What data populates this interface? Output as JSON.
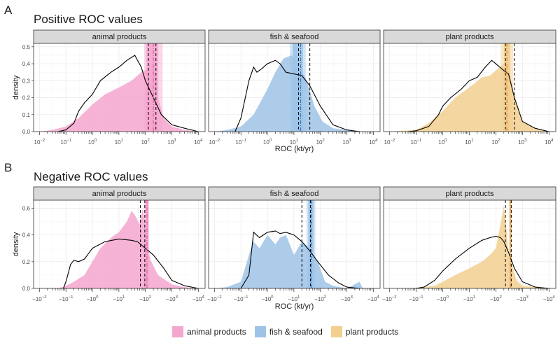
{
  "panels": [
    {
      "letter": "A",
      "title": "Positive ROC values"
    },
    {
      "letter": "B",
      "title": "Negative ROC values"
    }
  ],
  "colors": {
    "animal products": "#f4a6cf",
    "fish & seafood": "#9dc3e6",
    "plant products": "#f2cf8f",
    "animal_line": "#e8559b",
    "fish_line": "#2e6fc0",
    "plant_line": "#e07b2a"
  },
  "chart_data": [
    {
      "type": "area",
      "title": "Positive ROC values",
      "xlabel": "ROC (kt/yr)",
      "ylabel": "density",
      "x_scale": "log",
      "xlim": [
        0.006,
        18000
      ],
      "ylim": [
        0,
        0.52
      ],
      "y_ticks": [
        "0.0",
        "0.1",
        "0.2",
        "0.3",
        "0.4",
        "0.5"
      ],
      "x_tick_labels": [
        "10^-2",
        "10^-1",
        "10^0",
        "10^1",
        "10^2",
        "10^3",
        "10^4"
      ],
      "grid": true,
      "facets": [
        {
          "name": "animal products",
          "shaded_x": [
            0.01,
            0.03,
            0.1,
            0.3,
            1,
            3,
            10,
            30,
            70,
            100,
            150,
            200,
            300,
            500,
            1000,
            3000,
            10000
          ],
          "shaded_y": [
            0.0,
            0.01,
            0.03,
            0.08,
            0.16,
            0.22,
            0.26,
            0.3,
            0.35,
            0.36,
            0.4,
            0.38,
            0.2,
            0.08,
            0.03,
            0.01,
            0.0
          ],
          "line_x": [
            0.05,
            0.1,
            0.2,
            0.3,
            0.5,
            1,
            2,
            5,
            10,
            20,
            40,
            70,
            100,
            200,
            400,
            1000,
            3000,
            10000
          ],
          "line_y": [
            0.0,
            0.01,
            0.05,
            0.12,
            0.17,
            0.22,
            0.3,
            0.35,
            0.38,
            0.42,
            0.45,
            0.38,
            0.3,
            0.2,
            0.1,
            0.04,
            0.02,
            0.0
          ],
          "band_solid": [
            110,
            300
          ],
          "band_light": [
            90,
            450
          ],
          "vline_colored": 200,
          "vlines_dashed": [
            130,
            250
          ]
        },
        {
          "name": "fish & seafood",
          "shaded_x": [
            0.01,
            0.03,
            0.1,
            0.3,
            1,
            2,
            4,
            8,
            15,
            30,
            60,
            120,
            300,
            1000,
            5000
          ],
          "shaded_y": [
            0.0,
            0.01,
            0.03,
            0.1,
            0.25,
            0.35,
            0.43,
            0.45,
            0.4,
            0.3,
            0.15,
            0.06,
            0.02,
            0.01,
            0.0
          ],
          "line_x": [
            0.06,
            0.1,
            0.2,
            0.3,
            0.4,
            0.6,
            1,
            2,
            3,
            5,
            10,
            20,
            40,
            100,
            300,
            1000,
            3000
          ],
          "line_y": [
            0.0,
            0.08,
            0.3,
            0.38,
            0.35,
            0.37,
            0.4,
            0.42,
            0.4,
            0.35,
            0.34,
            0.33,
            0.27,
            0.15,
            0.04,
            0.01,
            0.0
          ],
          "band_solid": [
            9,
            22
          ],
          "band_light": [
            7,
            28
          ],
          "vline_colored": 18,
          "vlines_dashed": [
            15,
            40
          ]
        },
        {
          "name": "plant products",
          "shaded_x": [
            0.01,
            0.03,
            0.1,
            0.3,
            1,
            3,
            10,
            30,
            60,
            100,
            200,
            300,
            500,
            1000,
            3000,
            12000
          ],
          "shaded_y": [
            0.0,
            0.005,
            0.01,
            0.05,
            0.12,
            0.2,
            0.26,
            0.32,
            0.33,
            0.36,
            0.4,
            0.38,
            0.2,
            0.06,
            0.02,
            0.0
          ],
          "line_x": [
            0.05,
            0.1,
            0.3,
            0.7,
            1,
            2,
            5,
            10,
            20,
            40,
            70,
            100,
            200,
            300,
            500,
            1000,
            3000,
            10000
          ],
          "line_y": [
            0.0,
            0.005,
            0.03,
            0.1,
            0.15,
            0.2,
            0.25,
            0.3,
            0.32,
            0.38,
            0.42,
            0.4,
            0.36,
            0.34,
            0.2,
            0.06,
            0.02,
            0.0
          ],
          "band_solid": [
            200,
            350
          ],
          "band_light": [
            150,
            450
          ],
          "vline_colored": 260,
          "vlines_dashed": [
            230,
            500
          ]
        }
      ]
    },
    {
      "type": "area",
      "title": "Negative ROC values",
      "xlabel": "ROC (kt/yr)",
      "ylabel": "density",
      "x_scale": "log",
      "xlim": [
        0.006,
        18000
      ],
      "ylim": [
        0,
        0.66
      ],
      "y_ticks": [
        "0.0",
        "0.2",
        "0.4",
        "0.6"
      ],
      "x_tick_labels": [
        "-10^-2",
        "-10^-1",
        "-10^0",
        "-10^1",
        "-10^2",
        "-10^3",
        "-10^4"
      ],
      "grid": true,
      "facets": [
        {
          "name": "animal products",
          "shaded_x": [
            0.05,
            0.1,
            0.2,
            0.5,
            1,
            2,
            5,
            10,
            20,
            30,
            40,
            60,
            80,
            100,
            150,
            300,
            1000,
            3000,
            8000
          ],
          "shaded_y": [
            0.0,
            0.02,
            0.05,
            0.1,
            0.2,
            0.3,
            0.38,
            0.42,
            0.5,
            0.58,
            0.55,
            0.48,
            0.6,
            0.45,
            0.22,
            0.1,
            0.03,
            0.01,
            0.0
          ],
          "line_x": [
            0.08,
            0.1,
            0.15,
            0.2,
            0.3,
            0.5,
            1,
            3,
            10,
            30,
            50,
            100,
            200,
            500,
            1000,
            3000,
            10000
          ],
          "line_y": [
            0.0,
            0.05,
            0.18,
            0.21,
            0.2,
            0.22,
            0.3,
            0.35,
            0.37,
            0.36,
            0.35,
            0.3,
            0.25,
            0.15,
            0.06,
            0.02,
            0.0
          ],
          "band_solid": [
            100,
            130
          ],
          "band_light": [
            90,
            140
          ],
          "vline_colored": 115,
          "vlines_dashed": [
            65,
            95
          ]
        },
        {
          "name": "fish & seafood",
          "shaded_x": [
            0.01,
            0.03,
            0.1,
            0.2,
            0.3,
            0.5,
            1,
            2,
            3,
            5,
            8,
            10,
            20,
            40,
            80,
            150,
            300,
            1000,
            3000,
            4000
          ],
          "shaded_y": [
            0.0,
            0.01,
            0.05,
            0.25,
            0.35,
            0.3,
            0.4,
            0.33,
            0.38,
            0.4,
            0.3,
            0.25,
            0.35,
            0.3,
            0.2,
            0.05,
            0.02,
            0.0,
            0.05,
            0.0
          ],
          "line_x": [
            0.1,
            0.2,
            0.3,
            0.5,
            1,
            2,
            3,
            5,
            10,
            20,
            40,
            80,
            200,
            500,
            1000,
            3000
          ],
          "line_y": [
            0.0,
            0.1,
            0.42,
            0.38,
            0.42,
            0.43,
            0.41,
            0.42,
            0.4,
            0.35,
            0.28,
            0.2,
            0.1,
            0.04,
            0.01,
            0.0
          ],
          "band_solid": [
            35,
            55
          ],
          "band_light": [
            30,
            65
          ],
          "vline_colored": 45,
          "vlines_dashed": [
            20,
            42
          ]
        },
        {
          "name": "plant products",
          "shaded_x": [
            0.05,
            0.1,
            0.2,
            0.5,
            1,
            3,
            10,
            30,
            60,
            100,
            150,
            200,
            250,
            300,
            400,
            600,
            1000,
            3000,
            10000
          ],
          "shaded_y": [
            0.0,
            0.005,
            0.01,
            0.02,
            0.05,
            0.1,
            0.15,
            0.2,
            0.25,
            0.3,
            0.48,
            0.62,
            0.45,
            0.25,
            0.18,
            0.06,
            0.02,
            0.01,
            0.0
          ],
          "line_x": [
            0.1,
            0.2,
            0.5,
            1,
            3,
            10,
            30,
            60,
            100,
            150,
            200,
            300,
            500,
            1000,
            3000,
            10000
          ],
          "line_y": [
            0.0,
            0.01,
            0.06,
            0.13,
            0.22,
            0.3,
            0.36,
            0.38,
            0.39,
            0.38,
            0.35,
            0.27,
            0.15,
            0.05,
            0.01,
            0.0
          ],
          "band_solid": [
            330,
            380
          ],
          "band_light": [
            310,
            400
          ],
          "vline_colored": 350,
          "vlines_dashed": [
            230,
            380
          ]
        }
      ]
    }
  ],
  "legend": [
    {
      "label": "animal products",
      "color": "#f4a6cf"
    },
    {
      "label": "fish & seafood",
      "color": "#9dc3e6"
    },
    {
      "label": "plant products",
      "color": "#f2cf8f"
    }
  ]
}
